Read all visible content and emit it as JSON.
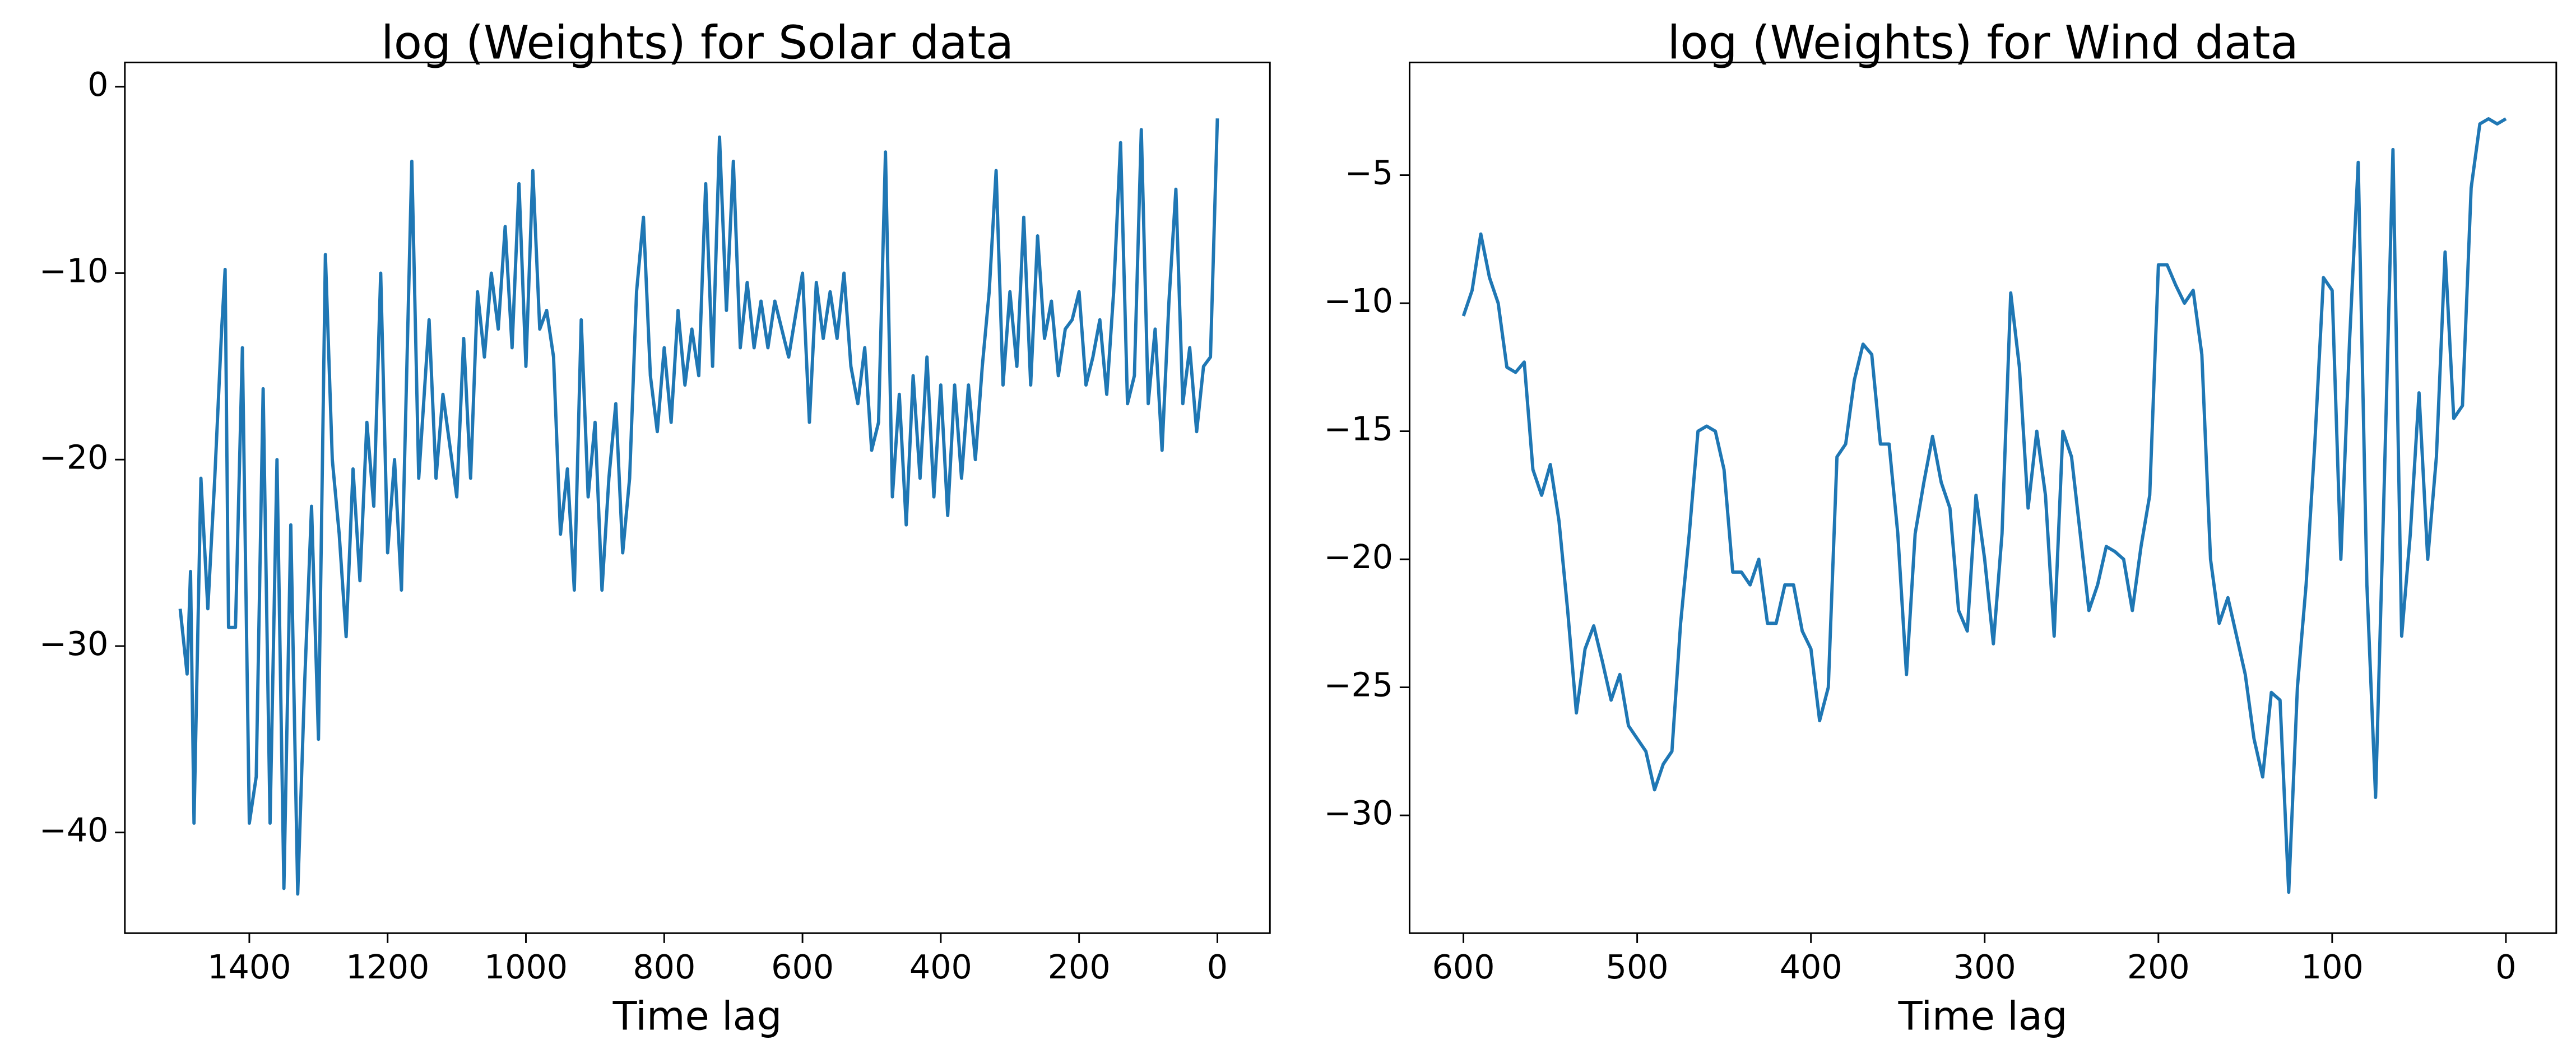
{
  "chart_data": [
    {
      "type": "line",
      "title": "log (Weights) for Solar data",
      "x_label": "Time lag",
      "xlim": [
        1580,
        -76
      ],
      "ylim": [
        -45.4,
        1.3
      ],
      "xticks": [
        1400,
        1200,
        1000,
        800,
        600,
        400,
        200,
        0
      ],
      "yticks": [
        {
          "value": -40,
          "label": "−40"
        },
        {
          "value": -30,
          "label": "−30"
        },
        {
          "value": -20,
          "label": "−20"
        },
        {
          "value": -10,
          "label": "−10"
        },
        0
      ],
      "series": [
        {
          "name": "Solar",
          "color": "#1f77b4",
          "x": [
            1500,
            1490,
            1485,
            1480,
            1470,
            1460,
            1450,
            1440,
            1435,
            1430,
            1420,
            1410,
            1400,
            1390,
            1380,
            1370,
            1360,
            1350,
            1340,
            1330,
            1320,
            1310,
            1300,
            1290,
            1280,
            1270,
            1260,
            1250,
            1240,
            1230,
            1220,
            1210,
            1200,
            1190,
            1180,
            1165,
            1155,
            1140,
            1130,
            1120,
            1100,
            1090,
            1080,
            1070,
            1060,
            1050,
            1040,
            1030,
            1020,
            1010,
            1000,
            990,
            980,
            970,
            960,
            950,
            940,
            930,
            920,
            910,
            900,
            890,
            880,
            870,
            860,
            850,
            840,
            830,
            820,
            810,
            800,
            790,
            780,
            770,
            760,
            750,
            740,
            730,
            720,
            710,
            700,
            690,
            680,
            670,
            660,
            650,
            640,
            620,
            600,
            590,
            580,
            570,
            560,
            550,
            540,
            530,
            520,
            510,
            500,
            490,
            480,
            470,
            460,
            450,
            440,
            430,
            420,
            410,
            400,
            390,
            380,
            370,
            360,
            350,
            340,
            330,
            320,
            310,
            300,
            290,
            280,
            270,
            260,
            250,
            240,
            230,
            220,
            210,
            200,
            190,
            180,
            170,
            160,
            150,
            140,
            130,
            120,
            110,
            100,
            90,
            80,
            70,
            60,
            50,
            40,
            30,
            20,
            10,
            0
          ],
          "values": [
            -28,
            -31.5,
            -26,
            -39.5,
            -21,
            -28,
            -21,
            -13,
            -9.8,
            -29,
            -29,
            -14,
            -39.5,
            -37,
            -16.2,
            -39.5,
            -20,
            -43,
            -23.5,
            -43.3,
            -32,
            -22.5,
            -35,
            -9,
            -20,
            -24,
            -29.5,
            -20.5,
            -26.5,
            -18,
            -22.5,
            -10,
            -25,
            -20,
            -27,
            -4,
            -21,
            -12.5,
            -21,
            -16.5,
            -22,
            -13.5,
            -21,
            -11,
            -14.5,
            -10,
            -13,
            -7.5,
            -14,
            -5.2,
            -15,
            -4.5,
            -13,
            -12,
            -14.5,
            -24,
            -20.5,
            -27,
            -12.5,
            -22,
            -18,
            -27,
            -21,
            -17,
            -25,
            -21,
            -11,
            -7,
            -15.5,
            -18.5,
            -14,
            -18,
            -12,
            -16,
            -13,
            -15.5,
            -5.2,
            -15,
            -2.7,
            -12,
            -4,
            -14,
            -10.5,
            -14,
            -11.5,
            -14,
            -11.5,
            -14.5,
            -10,
            -18,
            -10.5,
            -13.5,
            -11,
            -13.5,
            -10,
            -15,
            -17,
            -14,
            -19.5,
            -18,
            -3.5,
            -22,
            -16.5,
            -23.5,
            -15.5,
            -21,
            -14.5,
            -22,
            -16,
            -23,
            -16,
            -21,
            -16,
            -20,
            -15,
            -11,
            -4.5,
            -16,
            -11,
            -15,
            -7,
            -16,
            -8,
            -13.5,
            -11.5,
            -15.5,
            -13,
            -12.5,
            -11,
            -16,
            -14.5,
            -12.5,
            -16.5,
            -11,
            -3,
            -17,
            -15.5,
            -2.3,
            -17,
            -13,
            -19.5,
            -11.5,
            -5.5,
            -17,
            -14,
            -18.5,
            -15,
            -14.5,
            -1.7
          ]
        }
      ]
    },
    {
      "type": "line",
      "title": "log (Weights) for Wind data",
      "x_label": "Time lag",
      "xlim": [
        631,
        -29
      ],
      "ylim": [
        -34.6,
        -0.6
      ],
      "xticks": [
        600,
        500,
        400,
        300,
        200,
        100,
        0
      ],
      "yticks": [
        {
          "value": -30,
          "label": "−30"
        },
        {
          "value": -25,
          "label": "−25"
        },
        {
          "value": -20,
          "label": "−20"
        },
        {
          "value": -15,
          "label": "−15"
        },
        {
          "value": -10,
          "label": "−10"
        },
        {
          "value": -5,
          "label": "−5"
        }
      ],
      "series": [
        {
          "name": "Wind",
          "color": "#1f77b4",
          "x": [
            600,
            595,
            590,
            585,
            580,
            575,
            570,
            565,
            560,
            555,
            550,
            545,
            540,
            535,
            530,
            525,
            520,
            515,
            510,
            505,
            500,
            495,
            490,
            485,
            480,
            475,
            470,
            465,
            460,
            455,
            450,
            445,
            440,
            435,
            430,
            425,
            420,
            415,
            410,
            405,
            400,
            395,
            390,
            385,
            380,
            375,
            370,
            365,
            360,
            355,
            350,
            345,
            340,
            335,
            330,
            325,
            320,
            315,
            310,
            305,
            300,
            295,
            290,
            285,
            280,
            275,
            270,
            265,
            260,
            255,
            250,
            245,
            240,
            235,
            230,
            225,
            220,
            215,
            210,
            205,
            200,
            195,
            190,
            185,
            180,
            175,
            170,
            165,
            160,
            155,
            150,
            145,
            140,
            135,
            130,
            125,
            120,
            115,
            110,
            105,
            100,
            95,
            90,
            85,
            80,
            75,
            70,
            65,
            60,
            55,
            50,
            45,
            40,
            35,
            30,
            25,
            20,
            15,
            10,
            5,
            0
          ],
          "values": [
            -10.5,
            -9.5,
            -7.3,
            -9,
            -10,
            -12.5,
            -12.7,
            -12.3,
            -16.5,
            -17.5,
            -16.3,
            -18.5,
            -22,
            -26,
            -23.5,
            -22.6,
            -24,
            -25.5,
            -24.5,
            -26.5,
            -27,
            -27.5,
            -29,
            -28,
            -27.5,
            -22.5,
            -19,
            -15,
            -14.8,
            -15,
            -16.5,
            -20.5,
            -20.5,
            -21,
            -20,
            -22.5,
            -22.5,
            -21,
            -21,
            -22.8,
            -23.5,
            -26.3,
            -25,
            -16,
            -15.5,
            -13,
            -11.6,
            -12,
            -15.5,
            -15.5,
            -19,
            -24.5,
            -19,
            -17,
            -15.2,
            -17,
            -18,
            -22,
            -22.8,
            -17.5,
            -20,
            -23.3,
            -19,
            -9.6,
            -12.5,
            -18,
            -15,
            -17.5,
            -23,
            -15,
            -16,
            -19,
            -22,
            -21,
            -19.5,
            -19.7,
            -20,
            -22,
            -19.5,
            -17.5,
            -8.5,
            -8.5,
            -9.3,
            -10,
            -9.5,
            -12,
            -20,
            -22.5,
            -21.5,
            -23,
            -24.5,
            -27,
            -28.5,
            -25.2,
            -25.5,
            -33,
            -25,
            -21,
            -15.5,
            -9,
            -9.5,
            -20,
            -11.5,
            -4.5,
            -21,
            -29.3,
            -17,
            -4,
            -23,
            -19,
            -13.5,
            -20,
            -16,
            -8,
            -14.5,
            -14,
            -5.5,
            -3,
            -2.8,
            -3,
            -2.8
          ]
        }
      ]
    }
  ]
}
